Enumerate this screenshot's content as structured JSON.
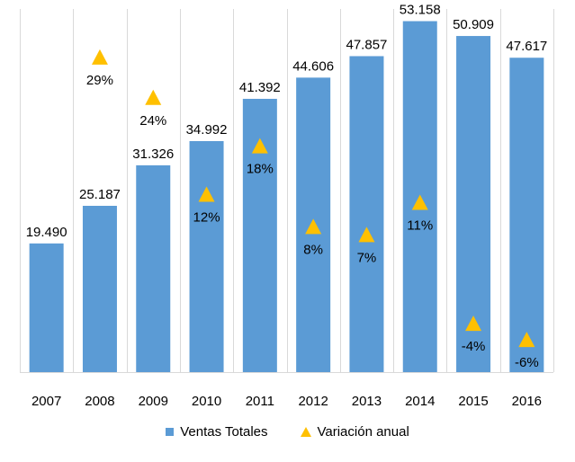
{
  "chart_data": {
    "type": "bar",
    "categories": [
      "2007",
      "2008",
      "2009",
      "2010",
      "2011",
      "2012",
      "2013",
      "2014",
      "2015",
      "2016"
    ],
    "series": [
      {
        "name": "Ventas Totales",
        "type": "bar",
        "color": "#5b9bd5",
        "values": [
          19490,
          25187,
          31326,
          34992,
          41392,
          44606,
          47857,
          53158,
          50909,
          47617
        ],
        "labels": [
          "19.490",
          "25.187",
          "31.326",
          "34.992",
          "41.392",
          "44.606",
          "47.857",
          "53.158",
          "50.909",
          "47.617"
        ]
      },
      {
        "name": "Variación anual",
        "type": "marker",
        "marker": "triangle",
        "color": "#ffc000",
        "values": [
          null,
          29,
          24,
          12,
          18,
          8,
          7,
          11,
          -4,
          -6
        ],
        "labels": [
          "",
          "29%",
          "24%",
          "12%",
          "18%",
          "8%",
          "7%",
          "11%",
          "-4%",
          "-6%"
        ]
      }
    ],
    "ylim": [
      0,
      55000
    ],
    "secondary_ylim": [
      -10,
      35
    ],
    "grid": "vertical",
    "legend": "bottom",
    "title": "",
    "xlabel": "",
    "ylabel": ""
  }
}
